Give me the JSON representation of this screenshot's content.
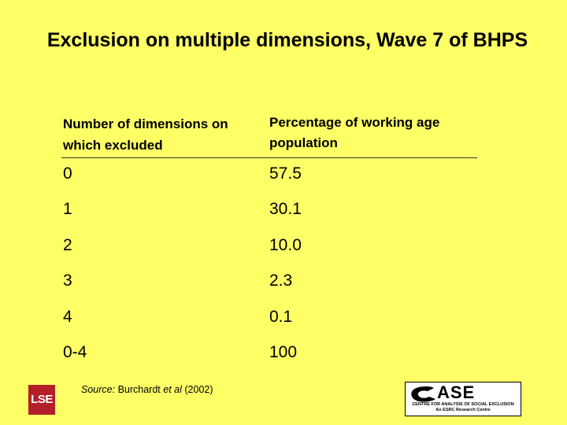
{
  "slide": {
    "title": "Exclusion on multiple dimensions, Wave 7 of BHPS"
  },
  "table": {
    "header_left": "Number of dimensions on which excluded",
    "header_right": "Percentage of working age population",
    "rows": [
      {
        "dimensions": "0",
        "percentage": "57.5"
      },
      {
        "dimensions": "1",
        "percentage": "30.1"
      },
      {
        "dimensions": "2",
        "percentage": "10.0"
      },
      {
        "dimensions": "3",
        "percentage": "2.3"
      },
      {
        "dimensions": "4",
        "percentage": "0.1"
      },
      {
        "dimensions": "0-4",
        "percentage": "100"
      }
    ]
  },
  "footer": {
    "source_label": "Source:",
    "source_author": "Burchardt",
    "source_etal": "et al",
    "source_year": "(2002)",
    "lse_logo_text": "LSE",
    "case_logo_word": "ASE",
    "case_logo_line1": "CENTRE FOR ANALYSIS OF SOCIAL EXCLUSION",
    "case_logo_line2": "An ESRC Research Centre"
  },
  "colors": {
    "background": "#ffff66",
    "lse_red": "#b3202a"
  }
}
